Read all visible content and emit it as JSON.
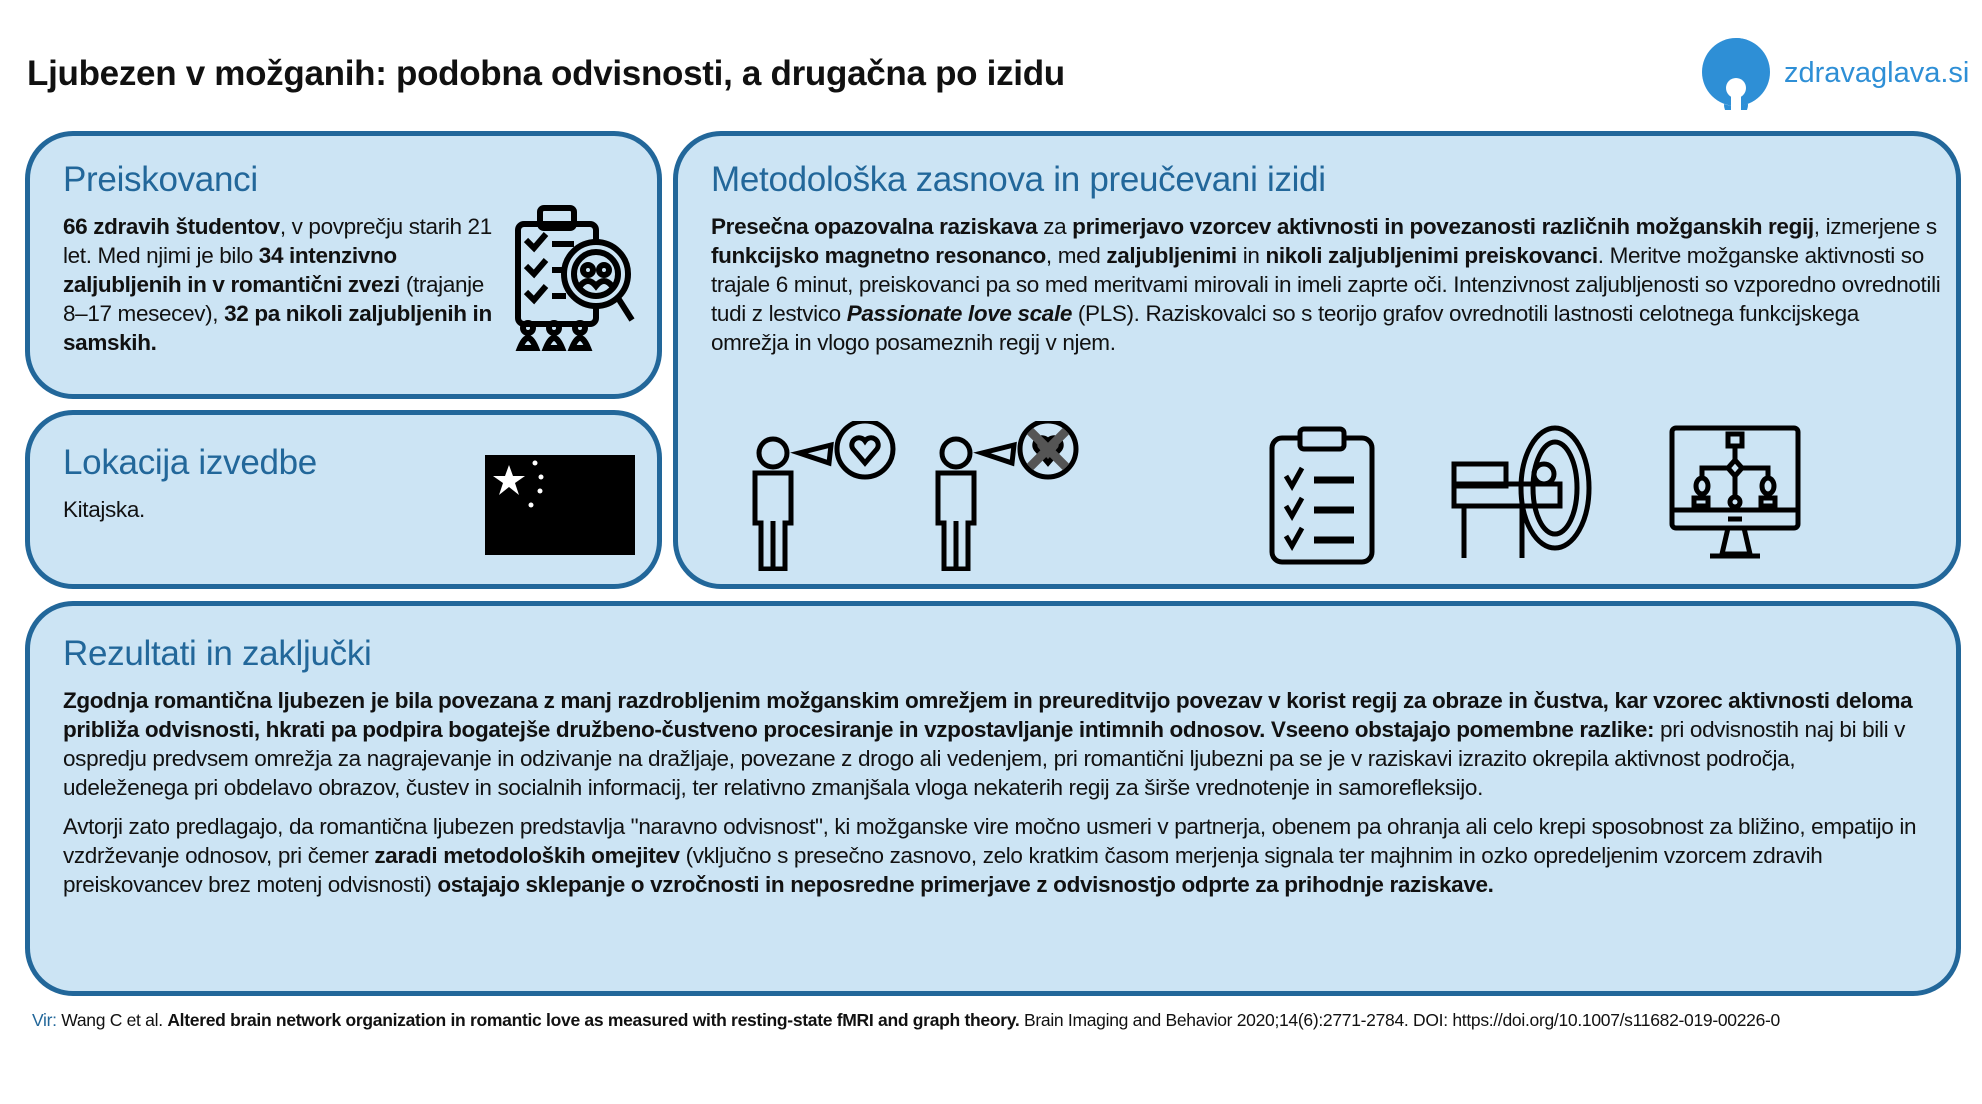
{
  "title": "Ljubezen v možganih: podobna odvisnosti, a drugačna po izidu",
  "logo": {
    "text": "zdravaglava.si",
    "color": "#2e8fd6",
    "icon": "brain-spiral-logo"
  },
  "colors": {
    "accent": "#22679a",
    "panel": "#cce4f4"
  },
  "participants": {
    "heading": "Preiskovanci",
    "icon": "clipboard-magnifier-people-icon",
    "text": [
      {
        "t": "66 zdravih študentov",
        "b": true
      },
      {
        "t": ", v povprečju starih 21 let. Med njimi je bilo ",
        "b": false
      },
      {
        "t": "34 intenzivno zaljubljenih in v romantični zvezi",
        "b": true
      },
      {
        "t": " (trajanje 8–17 mesecev), ",
        "b": false
      },
      {
        "t": "32 pa nikoli zaljubljenih in samskih.",
        "b": true
      }
    ]
  },
  "location": {
    "heading": "Lokacija izvedbe",
    "icon": "china-flag-icon",
    "text": [
      {
        "t": "Kitajska.",
        "b": false
      }
    ]
  },
  "methods": {
    "heading": "Metodološka zasnova in preučevani izidi",
    "icons": [
      "person-in-love-icon",
      "person-not-in-love-icon",
      "checklist-icon",
      "mri-scanner-icon",
      "network-graph-monitor-icon"
    ],
    "text": [
      {
        "t": "Presečna opazovalna raziskava",
        "b": true
      },
      {
        "t": " za ",
        "b": false
      },
      {
        "t": "primerjavo vzorcev aktivnosti in povezanosti različnih možganskih regij",
        "b": true
      },
      {
        "t": ", izmerjene s ",
        "b": false
      },
      {
        "t": "funkcijsko magnetno resonanco",
        "b": true
      },
      {
        "t": ", med ",
        "b": false
      },
      {
        "t": "zaljubljenimi",
        "b": true
      },
      {
        "t": " in ",
        "b": false
      },
      {
        "t": "nikoli zaljubljenimi preiskovanci",
        "b": true
      },
      {
        "t": ". Meritve možganske aktivnosti so trajale 6 minut, preiskovanci pa so med meritvami mirovali in imeli zaprte oči. Intenzivnost zaljubljenosti so vzporedno ovrednotili tudi z lestvico ",
        "b": false
      },
      {
        "t": "Passionate love scale",
        "b": true,
        "i": true
      },
      {
        "t": " (PLS). Raziskovalci so s teorijo grafov ovrednotili lastnosti celotnega funkcijskega omrežja in vlogo posameznih regij v njem.",
        "b": false
      }
    ]
  },
  "results": {
    "heading": "Rezultati in zaključki",
    "paragraphs": [
      [
        {
          "t": "Zgodnja romantična ljubezen je bila povezana z manj razdrobljenim možganskim omrežjem in preureditvijo povezav v korist regij za obraze in čustva, kar vzorec aktivnosti deloma približa odvisnosti, hkrati pa podpira bogatejše družbeno-čustveno procesiranje in vzpostavljanje intimnih odnosov. Vseeno obstajajo pomembne razlike:",
          "b": true
        },
        {
          "t": " pri odvisnostih naj bi bili v ospredju predvsem omrežja za nagrajevanje in odzivanje na dražljaje, povezane z drogo ali vedenjem, pri romantični ljubezni pa se je v raziskavi izrazito okrepila aktivnost področja, udeleženega pri obdelavo obrazov, čustev in socialnih informacij, ter relativno zmanjšala vloga nekaterih regij za širše vrednotenje in samorefleksijo.",
          "b": false
        }
      ],
      [
        {
          "t": "Avtorji zato predlagajo, da romantična ljubezen predstavlja \"naravno odvisnost\", ki možganske vire močno usmeri v partnerja, obenem pa ohranja ali celo krepi sposobnost za bližino, empatijo in vzdrževanje odnosov, pri čemer ",
          "b": false
        },
        {
          "t": "zaradi metodoloških omejitev",
          "b": true
        },
        {
          "t": " (vključno s presečno zasnovo, zelo kratkim časom merjenja signala ter majhnim in ozko opredeljenim vzorcem zdravih preiskovancev brez motenj odvisnosti) ",
          "b": false
        },
        {
          "t": "ostajajo sklepanje o vzročnosti in neposredne primerjave z odvisnostjo odprte za prihodnje raziskave.",
          "b": true
        }
      ]
    ]
  },
  "footer": {
    "label": "Vir:",
    "authors": " Wang C et al. ",
    "article": "Altered brain network organization in romantic love as measured with resting-state fMRI and graph theory.",
    "journal": " Brain Imaging and Behavior 2020;14(6):2771-2784. DOI: https://doi.org/10.1007/s11682-019-00226-0"
  }
}
